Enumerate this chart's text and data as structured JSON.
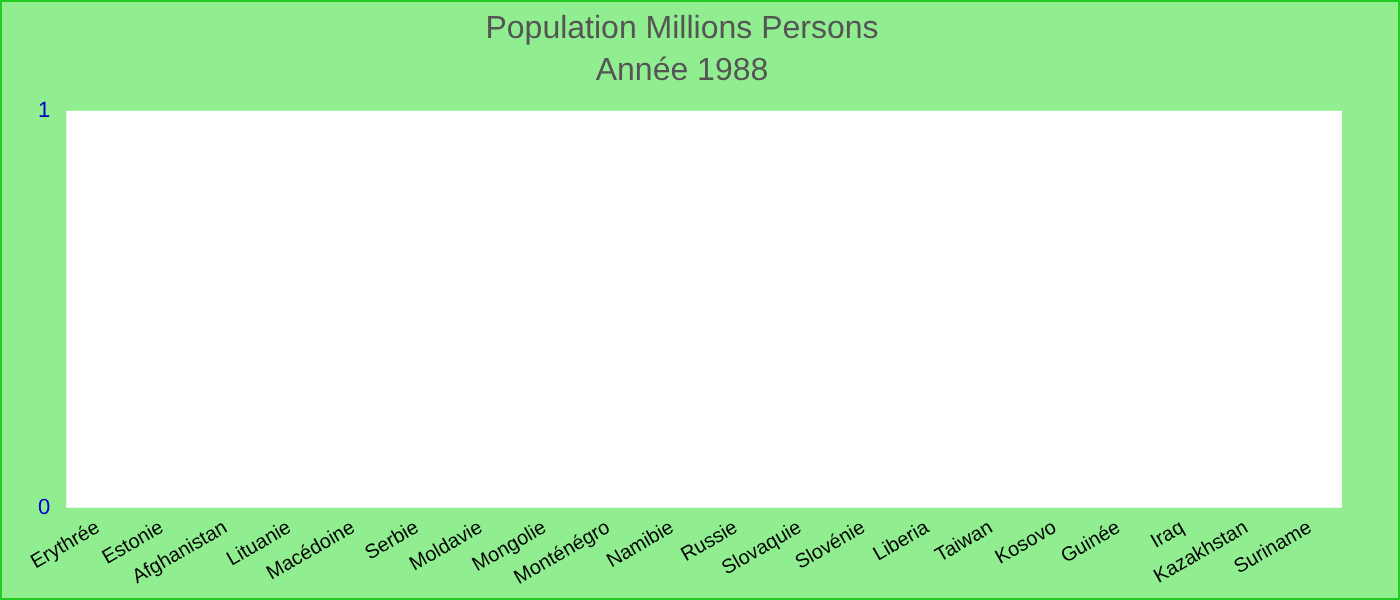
{
  "chart_data": {
    "type": "bar",
    "title": "Population Millions Persons",
    "subtitle": "Année 1988",
    "categories": [
      "Erythrée",
      "Estonie",
      "Afghanistan",
      "Lituanie",
      "Macédoine",
      "Serbie",
      "Moldavie",
      "Mongolie",
      "Monténégro",
      "Namibie",
      "Russie",
      "Slovaquie",
      "Slovénie",
      "Liberia",
      "Taiwan",
      "Kosovo",
      "Guinée",
      "Iraq",
      "Kazakhstan",
      "Suriname"
    ],
    "values": [
      null,
      null,
      null,
      null,
      null,
      null,
      null,
      null,
      null,
      null,
      null,
      null,
      null,
      null,
      null,
      null,
      null,
      null,
      null,
      null
    ],
    "ylim": [
      0,
      1
    ],
    "yticks": [
      0,
      1
    ],
    "grid": false,
    "legend": false
  }
}
